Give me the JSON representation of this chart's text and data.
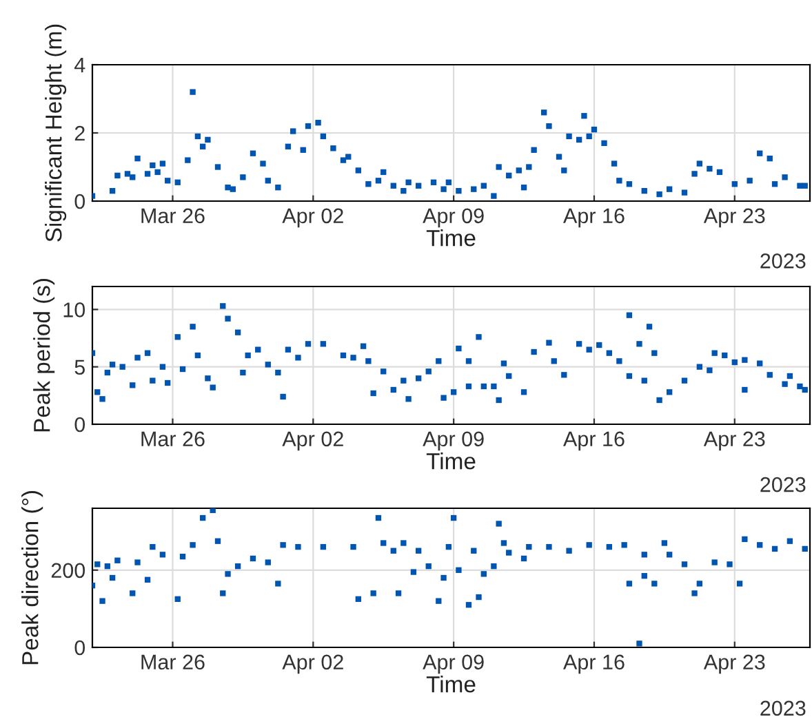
{
  "chart_data": [
    {
      "type": "scatter",
      "xlabel": "Time",
      "ylabel": "Significant Height (m)",
      "annotations": [
        "2023"
      ],
      "color": "#0055b0",
      "marker": "square",
      "grid": true,
      "xlim": [
        "2023-03-22T00:00",
        "2023-04-26T18:00"
      ],
      "ylim": [
        0,
        4
      ],
      "yticks": [
        0,
        2,
        4
      ],
      "xticks": [
        {
          "value": "2023-03-26",
          "label": "Mar 26"
        },
        {
          "value": "2023-04-02",
          "label": "Apr 02"
        },
        {
          "value": "2023-04-09",
          "label": "Apr 09"
        },
        {
          "value": "2023-04-16",
          "label": "Apr 16"
        },
        {
          "value": "2023-04-23",
          "label": "Apr 23"
        }
      ],
      "x": [
        "2023-03-22T00:00",
        "2023-03-23T00:00",
        "2023-03-23T06:00",
        "2023-03-23T18:00",
        "2023-03-24T00:00",
        "2023-03-24T06:00",
        "2023-03-24T18:00",
        "2023-03-25T00:00",
        "2023-03-25T06:00",
        "2023-03-25T12:00",
        "2023-03-25T18:00",
        "2023-03-26T06:00",
        "2023-03-26T18:00",
        "2023-03-27T00:00",
        "2023-03-27T06:00",
        "2023-03-27T12:00",
        "2023-03-27T18:00",
        "2023-03-28T06:00",
        "2023-03-28T18:00",
        "2023-03-29T00:00",
        "2023-03-29T12:00",
        "2023-03-30T00:00",
        "2023-03-30T12:00",
        "2023-03-30T18:00",
        "2023-03-31T06:00",
        "2023-03-31T18:00",
        "2023-04-01T00:00",
        "2023-04-01T12:00",
        "2023-04-01T18:00",
        "2023-04-02T06:00",
        "2023-04-02T12:00",
        "2023-04-03T00:00",
        "2023-04-03T12:00",
        "2023-04-03T18:00",
        "2023-04-04T06:00",
        "2023-04-04T18:00",
        "2023-04-05T06:00",
        "2023-04-05T12:00",
        "2023-04-06T00:00",
        "2023-04-06T12:00",
        "2023-04-06T18:00",
        "2023-04-07T06:00",
        "2023-04-08T00:00",
        "2023-04-08T12:00",
        "2023-04-08T18:00",
        "2023-04-09T06:00",
        "2023-04-10T00:00",
        "2023-04-10T12:00",
        "2023-04-11T00:00",
        "2023-04-11T06:00",
        "2023-04-11T18:00",
        "2023-04-12T06:00",
        "2023-04-12T12:00",
        "2023-04-12T18:00",
        "2023-04-13T00:00",
        "2023-04-13T12:00",
        "2023-04-13T18:00",
        "2023-04-14T06:00",
        "2023-04-14T12:00",
        "2023-04-14T18:00",
        "2023-04-15T06:00",
        "2023-04-15T12:00",
        "2023-04-15T18:00",
        "2023-04-16T00:00",
        "2023-04-16T12:00",
        "2023-04-17T00:00",
        "2023-04-17T06:00",
        "2023-04-17T18:00",
        "2023-04-18T12:00",
        "2023-04-19T06:00",
        "2023-04-19T18:00",
        "2023-04-20T12:00",
        "2023-04-21T00:00",
        "2023-04-21T06:00",
        "2023-04-21T18:00",
        "2023-04-22T06:00",
        "2023-04-23T00:00",
        "2023-04-23T18:00",
        "2023-04-24T06:00",
        "2023-04-24T18:00",
        "2023-04-25T00:00",
        "2023-04-25T12:00",
        "2023-04-26T06:00",
        "2023-04-26T12:00"
      ],
      "values": [
        0.15,
        0.3,
        0.75,
        0.8,
        0.7,
        1.25,
        0.8,
        1.05,
        0.85,
        1.1,
        0.6,
        0.55,
        1.2,
        3.2,
        1.9,
        1.6,
        1.8,
        1.0,
        0.4,
        0.35,
        0.7,
        1.4,
        1.1,
        0.6,
        0.4,
        1.6,
        2.05,
        1.5,
        2.2,
        2.3,
        1.9,
        1.55,
        1.2,
        1.3,
        0.9,
        0.5,
        0.6,
        0.85,
        0.45,
        0.3,
        0.55,
        0.45,
        0.55,
        0.35,
        0.55,
        0.3,
        0.35,
        0.45,
        0.15,
        1.0,
        0.75,
        0.9,
        0.4,
        1.0,
        1.5,
        2.6,
        2.2,
        1.3,
        0.9,
        1.9,
        1.8,
        2.5,
        1.9,
        2.1,
        1.7,
        1.1,
        0.6,
        0.5,
        0.3,
        0.2,
        0.35,
        0.25,
        0.8,
        1.1,
        0.95,
        0.85,
        0.5,
        0.6,
        1.4,
        1.25,
        0.5,
        0.7,
        0.45,
        0.45
      ]
    },
    {
      "type": "scatter",
      "xlabel": "Time",
      "ylabel": "Peak period (s)",
      "annotations": [
        "2023"
      ],
      "color": "#0055b0",
      "marker": "square",
      "grid": true,
      "xlim": [
        "2023-03-22T00:00",
        "2023-04-26T18:00"
      ],
      "ylim": [
        0,
        12
      ],
      "yticks": [
        0,
        5,
        10
      ],
      "xticks": [
        {
          "value": "2023-03-26",
          "label": "Mar 26"
        },
        {
          "value": "2023-04-02",
          "label": "Apr 02"
        },
        {
          "value": "2023-04-09",
          "label": "Apr 09"
        },
        {
          "value": "2023-04-16",
          "label": "Apr 16"
        },
        {
          "value": "2023-04-23",
          "label": "Apr 23"
        }
      ],
      "x": [
        "2023-03-22T00:00",
        "2023-03-22T06:00",
        "2023-03-22T12:00",
        "2023-03-22T18:00",
        "2023-03-23T00:00",
        "2023-03-23T12:00",
        "2023-03-24T00:00",
        "2023-03-24T06:00",
        "2023-03-24T18:00",
        "2023-03-25T00:00",
        "2023-03-25T12:00",
        "2023-03-25T18:00",
        "2023-03-26T06:00",
        "2023-03-26T12:00",
        "2023-03-27T00:00",
        "2023-03-27T06:00",
        "2023-03-27T18:00",
        "2023-03-28T00:00",
        "2023-03-28T12:00",
        "2023-03-28T18:00",
        "2023-03-29T06:00",
        "2023-03-29T12:00",
        "2023-03-29T18:00",
        "2023-03-30T06:00",
        "2023-03-30T18:00",
        "2023-03-31T06:00",
        "2023-03-31T12:00",
        "2023-03-31T18:00",
        "2023-04-01T06:00",
        "2023-04-01T18:00",
        "2023-04-02T12:00",
        "2023-04-03T12:00",
        "2023-04-04T00:00",
        "2023-04-04T12:00",
        "2023-04-04T18:00",
        "2023-04-05T00:00",
        "2023-04-05T12:00",
        "2023-04-06T00:00",
        "2023-04-06T12:00",
        "2023-04-06T18:00",
        "2023-04-07T06:00",
        "2023-04-07T18:00",
        "2023-04-08T06:00",
        "2023-04-08T12:00",
        "2023-04-09T00:00",
        "2023-04-09T06:00",
        "2023-04-09T18:00",
        "2023-04-09T18:00",
        "2023-04-10T06:00",
        "2023-04-10T12:00",
        "2023-04-11T00:00",
        "2023-04-11T06:00",
        "2023-04-11T12:00",
        "2023-04-11T18:00",
        "2023-04-12T12:00",
        "2023-04-13T00:00",
        "2023-04-13T18:00",
        "2023-04-14T00:00",
        "2023-04-14T12:00",
        "2023-04-15T06:00",
        "2023-04-15T18:00",
        "2023-04-16T06:00",
        "2023-04-16T18:00",
        "2023-04-17T06:00",
        "2023-04-17T18:00",
        "2023-04-17T18:00",
        "2023-04-18T06:00",
        "2023-04-18T12:00",
        "2023-04-18T18:00",
        "2023-04-19T00:00",
        "2023-04-19T06:00",
        "2023-04-19T18:00",
        "2023-04-20T12:00",
        "2023-04-21T06:00",
        "2023-04-21T18:00",
        "2023-04-22T00:00",
        "2023-04-22T12:00",
        "2023-04-23T00:00",
        "2023-04-23T12:00",
        "2023-04-23T12:00",
        "2023-04-24T06:00",
        "2023-04-24T18:00",
        "2023-04-25T12:00",
        "2023-04-25T18:00",
        "2023-04-26T06:00",
        "2023-04-26T12:00"
      ],
      "values": [
        6.2,
        2.8,
        2.2,
        4.5,
        5.2,
        5.0,
        3.4,
        5.8,
        6.2,
        3.8,
        5.0,
        3.6,
        7.6,
        4.8,
        8.5,
        6.0,
        4.0,
        3.2,
        10.3,
        9.2,
        8.0,
        4.5,
        6.0,
        6.5,
        5.2,
        4.5,
        2.4,
        6.5,
        5.8,
        7.0,
        7.0,
        6.0,
        5.8,
        6.8,
        5.5,
        2.7,
        4.6,
        3.0,
        3.8,
        2.2,
        4.0,
        4.6,
        5.5,
        2.3,
        2.8,
        6.6,
        5.5,
        3.3,
        7.6,
        3.3,
        3.3,
        2.1,
        5.3,
        4.2,
        2.8,
        6.3,
        7.1,
        5.5,
        4.3,
        7.0,
        6.5,
        6.9,
        6.2,
        5.5,
        4.2,
        9.5,
        7.0,
        3.8,
        8.5,
        6.2,
        2.1,
        2.8,
        3.8,
        5.0,
        4.7,
        6.2,
        6.0,
        5.4,
        5.6,
        3.0,
        5.3,
        4.3,
        3.5,
        4.2,
        3.3,
        3.0
      ]
    },
    {
      "type": "scatter",
      "xlabel": "Time",
      "ylabel": "Peak direction (°)",
      "annotations": [
        "2023"
      ],
      "color": "#0055b0",
      "marker": "square",
      "grid": true,
      "xlim": [
        "2023-03-22T00:00",
        "2023-04-26T18:00"
      ],
      "ylim": [
        0,
        360
      ],
      "yticks": [
        0,
        200
      ],
      "xticks": [
        {
          "value": "2023-03-26",
          "label": "Mar 26"
        },
        {
          "value": "2023-04-02",
          "label": "Apr 02"
        },
        {
          "value": "2023-04-09",
          "label": "Apr 09"
        },
        {
          "value": "2023-04-16",
          "label": "Apr 16"
        },
        {
          "value": "2023-04-23",
          "label": "Apr 23"
        }
      ],
      "x": [
        "2023-03-22T00:00",
        "2023-03-22T06:00",
        "2023-03-22T12:00",
        "2023-03-22T18:00",
        "2023-03-23T00:00",
        "2023-03-23T06:00",
        "2023-03-24T00:00",
        "2023-03-24T06:00",
        "2023-03-24T18:00",
        "2023-03-25T00:00",
        "2023-03-25T12:00",
        "2023-03-26T06:00",
        "2023-03-26T12:00",
        "2023-03-27T00:00",
        "2023-03-27T12:00",
        "2023-03-28T00:00",
        "2023-03-28T06:00",
        "2023-03-28T12:00",
        "2023-03-28T18:00",
        "2023-03-29T06:00",
        "2023-03-30T00:00",
        "2023-03-30T18:00",
        "2023-03-31T06:00",
        "2023-03-31T12:00",
        "2023-04-01T06:00",
        "2023-04-02T12:00",
        "2023-04-04T00:00",
        "2023-04-04T06:00",
        "2023-04-05T00:00",
        "2023-04-05T06:00",
        "2023-04-05T12:00",
        "2023-04-06T00:00",
        "2023-04-06T06:00",
        "2023-04-06T12:00",
        "2023-04-07T00:00",
        "2023-04-07T06:00",
        "2023-04-07T18:00",
        "2023-04-08T06:00",
        "2023-04-08T12:00",
        "2023-04-08T18:00",
        "2023-04-09T00:00",
        "2023-04-09T06:00",
        "2023-04-09T18:00",
        "2023-04-10T00:00",
        "2023-04-10T06:00",
        "2023-04-10T12:00",
        "2023-04-11T00:00",
        "2023-04-11T06:00",
        "2023-04-11T12:00",
        "2023-04-11T18:00",
        "2023-04-12T12:00",
        "2023-04-12T18:00",
        "2023-04-13T18:00",
        "2023-04-14T18:00",
        "2023-04-15T18:00",
        "2023-04-16T18:00",
        "2023-04-17T12:00",
        "2023-04-17T18:00",
        "2023-04-18T06:00",
        "2023-04-18T12:00",
        "2023-04-18T12:00",
        "2023-04-19T00:00",
        "2023-04-19T12:00",
        "2023-04-19T18:00",
        "2023-04-20T12:00",
        "2023-04-21T00:00",
        "2023-04-21T06:00",
        "2023-04-22T00:00",
        "2023-04-22T18:00",
        "2023-04-23T06:00",
        "2023-04-23T12:00",
        "2023-04-24T06:00",
        "2023-04-25T00:00",
        "2023-04-25T18:00",
        "2023-04-26T12:00"
      ],
      "values": [
        160,
        215,
        120,
        210,
        180,
        225,
        140,
        220,
        175,
        260,
        240,
        125,
        235,
        265,
        335,
        355,
        275,
        140,
        190,
        210,
        230,
        220,
        165,
        265,
        260,
        260,
        260,
        125,
        140,
        335,
        270,
        250,
        140,
        270,
        195,
        250,
        210,
        120,
        180,
        260,
        335,
        200,
        110,
        250,
        130,
        190,
        210,
        320,
        270,
        245,
        230,
        260,
        260,
        250,
        265,
        260,
        265,
        165,
        10,
        185,
        240,
        165,
        270,
        240,
        215,
        140,
        165,
        220,
        215,
        165,
        280,
        265,
        255,
        275,
        255
      ]
    }
  ]
}
